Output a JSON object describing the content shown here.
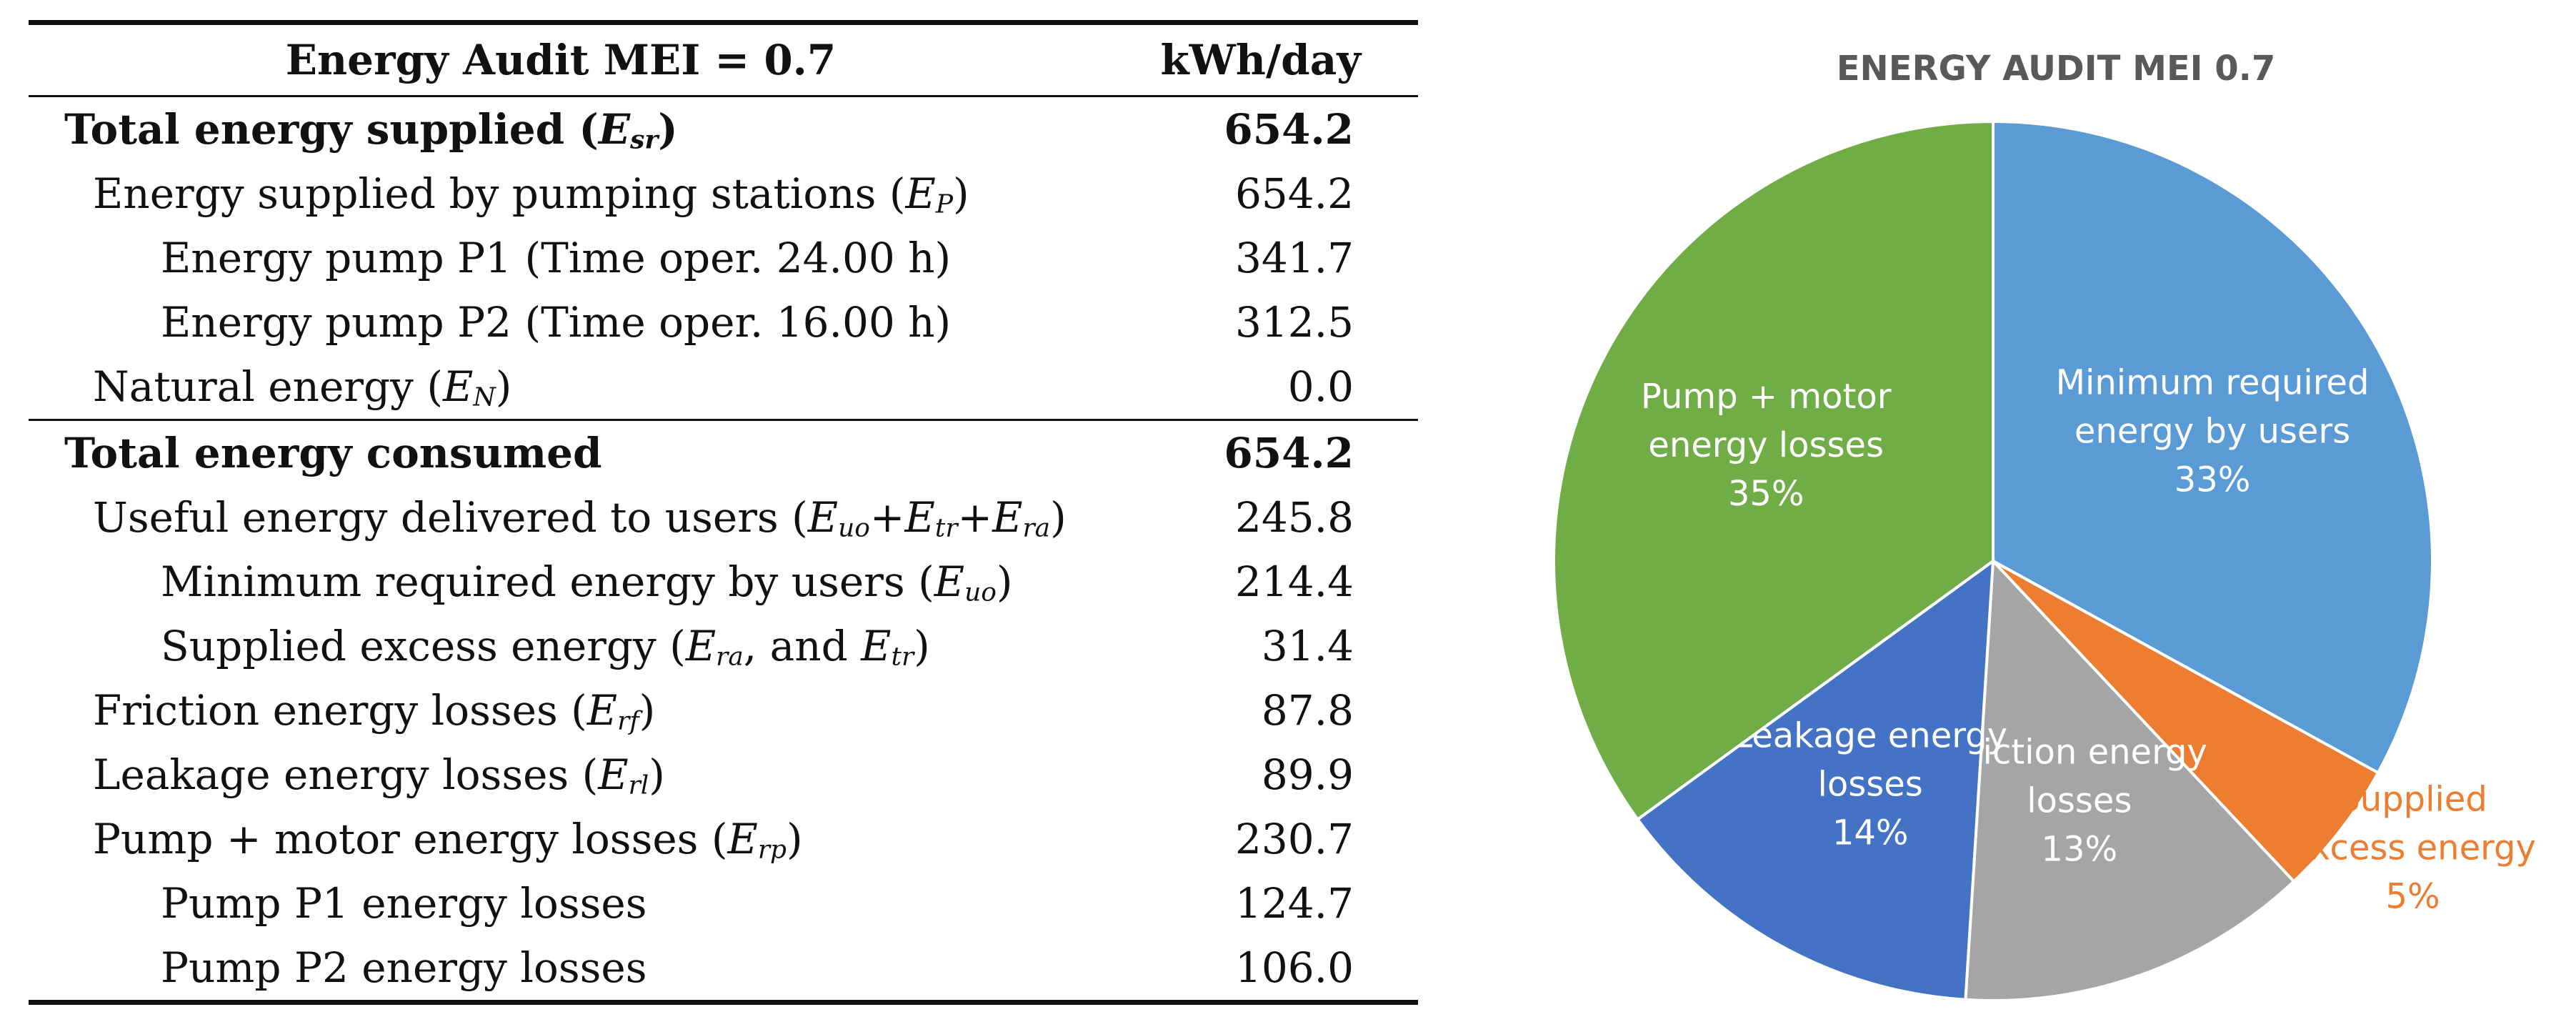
{
  "table": {
    "header": {
      "label": "Energy Audit MEI = 0.7",
      "unit": "kWh/day"
    },
    "rows": [
      {
        "level": 0,
        "bold": true,
        "text": "Total energy supplied (",
        "sym": "E",
        "sub": "sr",
        "end": ")",
        "value": "654.2"
      },
      {
        "level": 1,
        "bold": false,
        "text": "Energy supplied by pumping stations (",
        "sym": "E",
        "sub": "P",
        "end": ")",
        "value": "654.2"
      },
      {
        "level": 2,
        "bold": false,
        "text": "Energy pump P1 (Time oper. 24.00 h)",
        "value": "341.7"
      },
      {
        "level": 2,
        "bold": false,
        "text": "Energy pump P2 (Time oper. 16.00 h)",
        "value": "312.5"
      },
      {
        "level": 1,
        "bold": false,
        "text": "Natural energy (",
        "sym": "E",
        "sub": "N",
        "end": ")",
        "value": "0.0",
        "rule_after": true
      },
      {
        "level": 0,
        "bold": true,
        "text": "Total energy consumed",
        "value": "654.2"
      },
      {
        "level": 1,
        "bold": false,
        "text": "Useful energy delivered to users (",
        "formula": "Euo+Etr+Era",
        "end": ")",
        "value": "245.8"
      },
      {
        "level": 2,
        "bold": false,
        "text": "Minimum required energy by users (",
        "sym": "E",
        "sub": "uo",
        "end": ")",
        "value": "214.4"
      },
      {
        "level": 2,
        "bold": false,
        "text": "Supplied excess energy (",
        "formula": "Era, and Etr",
        "end": ")",
        "value": "31.4"
      },
      {
        "level": 1,
        "bold": false,
        "text": "Friction energy losses (",
        "sym": "E",
        "sub": "rf",
        "end": ")",
        "value": "87.8"
      },
      {
        "level": 1,
        "bold": false,
        "text": "Leakage energy losses (",
        "sym": "E",
        "sub": "rl",
        "end": ")",
        "value": "89.9"
      },
      {
        "level": 1,
        "bold": false,
        "text": "Pump + motor energy losses (",
        "sym": "E",
        "sub": "rp",
        "end": ")",
        "value": "230.7"
      },
      {
        "level": 2,
        "bold": false,
        "text": "Pump P1 energy losses",
        "value": "124.7"
      },
      {
        "level": 2,
        "bold": false,
        "text": "Pump P2 energy losses",
        "value": "106.0"
      }
    ]
  },
  "chart_data": {
    "type": "pie",
    "title": "ENERGY AUDIT MEI 0.7",
    "start_angle_deg": 0,
    "direction": "clockwise",
    "slices": [
      {
        "lines": [
          "Minimum required",
          "energy by users",
          "33%"
        ],
        "value": 33,
        "color": "#5B9BD5",
        "label_color": "#FFFFFF",
        "label_outside": false
      },
      {
        "lines": [
          "Supplied",
          "excess energy",
          "5%"
        ],
        "value": 5,
        "color": "#ED7D31",
        "label_color": "#ED7D31",
        "label_outside": true
      },
      {
        "lines": [
          "Friction energy",
          "losses",
          "13%"
        ],
        "value": 13,
        "color": "#A5A5A5",
        "label_color": "#FFFFFF",
        "label_outside": false
      },
      {
        "lines": [
          "Leakage energy",
          "losses",
          "14%"
        ],
        "value": 14,
        "color": "#4472C4",
        "label_color": "#FFFFFF",
        "label_outside": false
      },
      {
        "lines": [
          "Pump + motor",
          "energy losses",
          "35%"
        ],
        "value": 35,
        "color": "#70AD47",
        "label_color": "#FFFFFF",
        "label_outside": false
      }
    ]
  }
}
